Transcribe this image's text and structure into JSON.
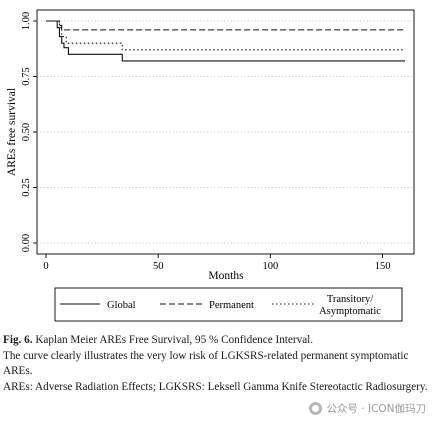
{
  "chart_data": {
    "type": "line",
    "step": true,
    "xlabel": "Months",
    "ylabel": "AREs free survival",
    "xlim": [
      0,
      160
    ],
    "ylim": [
      0,
      1
    ],
    "x_ticks": [
      0,
      50,
      100,
      150
    ],
    "y_ticks": [
      "0.00",
      "0.25",
      "0.50",
      "0.75",
      "1.00"
    ],
    "grid": "horizontal dotted",
    "legend_position": "bottom",
    "series": [
      {
        "name": "Global",
        "style": "solid",
        "x": [
          0,
          5,
          6,
          7,
          8,
          10,
          34,
          160
        ],
        "y": [
          1.0,
          0.97,
          0.93,
          0.9,
          0.88,
          0.85,
          0.82,
          0.82
        ]
      },
      {
        "name": "Permanent",
        "style": "dashed",
        "x": [
          0,
          6,
          7,
          160
        ],
        "y": [
          1.0,
          0.98,
          0.96,
          0.96
        ]
      },
      {
        "name": "Transitory/\nAsymptomatic",
        "style": "dotdash",
        "x": [
          0,
          6,
          7,
          9,
          34,
          160
        ],
        "y": [
          1.0,
          0.97,
          0.93,
          0.9,
          0.87,
          0.87
        ]
      }
    ]
  },
  "caption": {
    "label": "Fig. 6.",
    "title": "Kaplan Meier AREs Free Survival, 95 % Confidence Interval.",
    "line2": "The curve clearly illustrates the very low risk of LGKSRS-related permanent symptomatic AREs.",
    "line3": "AREs: Adverse Radiation Effects; LGKSRS: Leksell Gamma Knife Stereotactic Radiosurgery."
  },
  "watermark": {
    "text": "公众号 · ICON伽玛刀"
  }
}
